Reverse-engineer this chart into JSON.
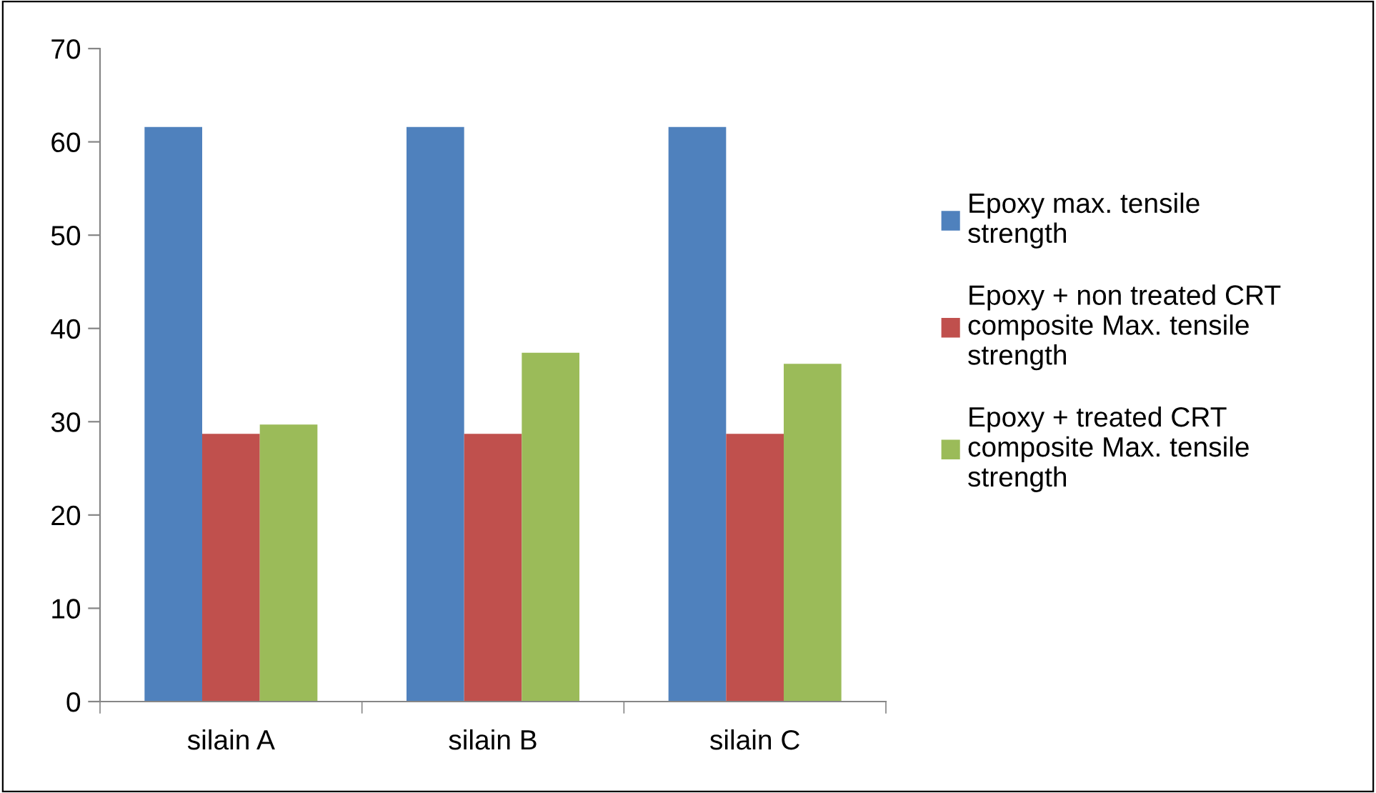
{
  "chart_data": {
    "type": "bar",
    "categories": [
      "silain A",
      "silain B",
      "silain C"
    ],
    "series": [
      {
        "name": "Epoxy max. tensile strength",
        "color": "#4f81bd",
        "values": [
          61.6,
          61.6,
          61.6
        ]
      },
      {
        "name": "Epoxy + non treated CRT composite Max. tensile strength",
        "color": "#c0504d",
        "values": [
          28.7,
          28.7,
          28.7
        ]
      },
      {
        "name": "Epoxy + treated CRT composite Max. tensile strength",
        "color": "#9bbb59",
        "values": [
          29.7,
          37.4,
          36.2
        ]
      }
    ],
    "ylim": [
      0,
      70
    ],
    "yticks": [
      0,
      10,
      20,
      30,
      40,
      50,
      60,
      70
    ],
    "grid": false,
    "legend": "right"
  }
}
